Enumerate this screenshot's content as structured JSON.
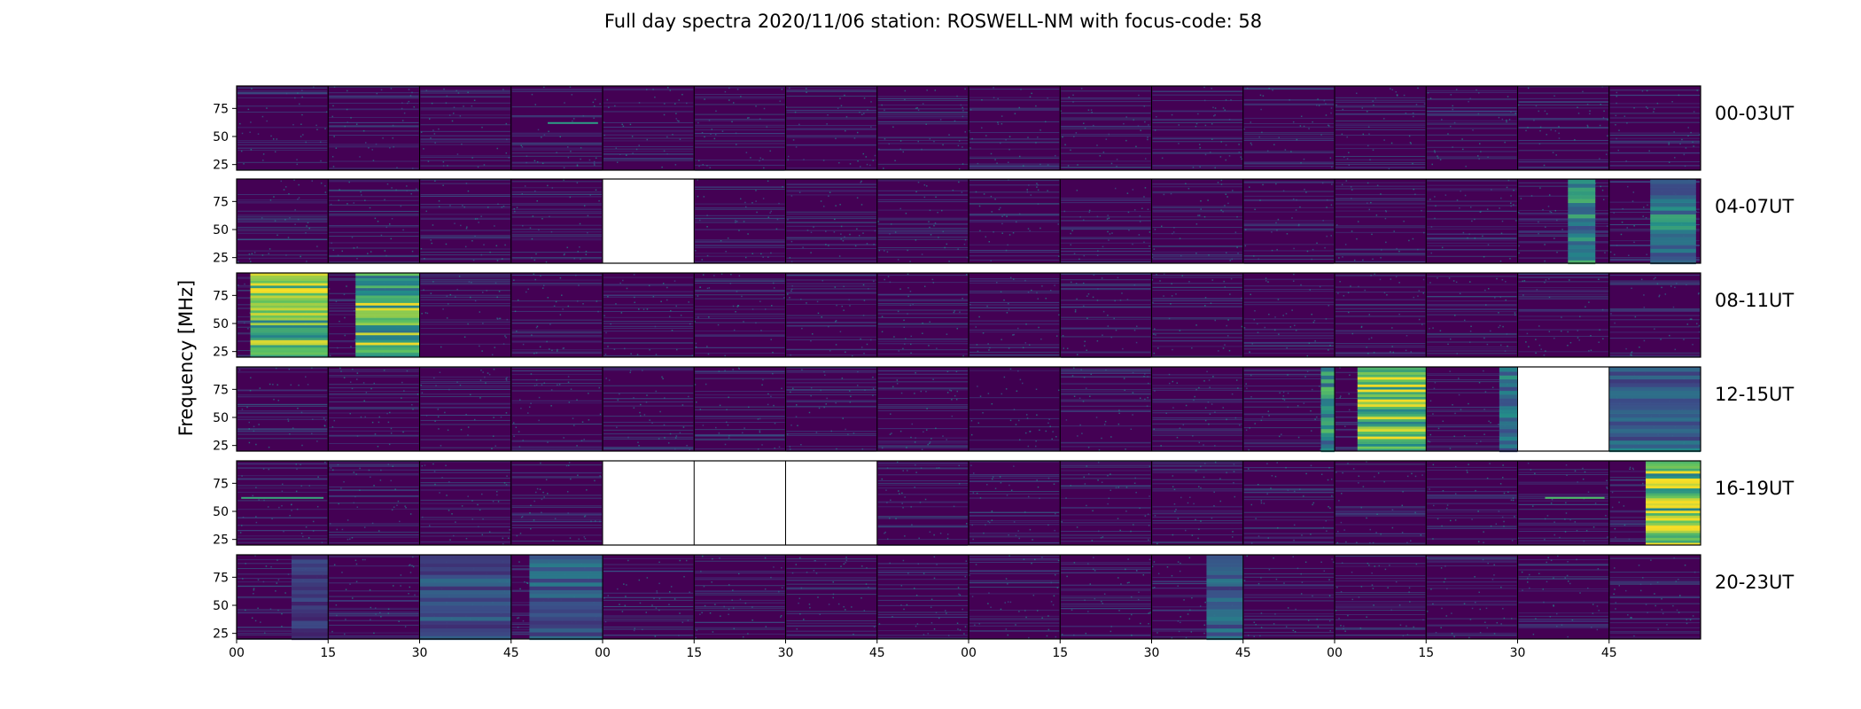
{
  "chart_data": {
    "type": "heatmap",
    "title": "Full day spectra 2020/11/06 station: ROSWELL-NM with focus-code: 58",
    "ylabel": "Frequency [MHz]",
    "xlabel": "",
    "y_ticks": [
      25,
      50,
      75
    ],
    "ylim": [
      20,
      95
    ],
    "x_ticks": [
      "00",
      "15",
      "30",
      "45",
      "00",
      "15",
      "30",
      "45",
      "00",
      "15",
      "30",
      "45",
      "00",
      "15",
      "30",
      "45"
    ],
    "colormap": "viridis",
    "colors": {
      "low": "#440154",
      "mid": "#21918c",
      "high": "#fde725",
      "missing": "#ffffff"
    },
    "rows": [
      {
        "label": "00-03UT",
        "panels": [
          {
            "state": "quiet"
          },
          {
            "state": "quiet"
          },
          {
            "state": "quiet"
          },
          {
            "state": "quiet",
            "lines": [
              {
                "f": 62,
                "i": 0.55,
                "x0": 0.4,
                "x1": 0.95
              }
            ]
          },
          {
            "state": "quiet"
          },
          {
            "state": "quiet"
          },
          {
            "state": "quiet"
          },
          {
            "state": "quiet"
          },
          {
            "state": "quiet"
          },
          {
            "state": "quiet"
          },
          {
            "state": "quiet"
          },
          {
            "state": "quiet"
          },
          {
            "state": "quiet"
          },
          {
            "state": "quiet"
          },
          {
            "state": "quiet"
          },
          {
            "state": "quiet"
          }
        ]
      },
      {
        "label": "04-07UT",
        "panels": [
          {
            "state": "quiet"
          },
          {
            "state": "quiet"
          },
          {
            "state": "quiet"
          },
          {
            "state": "quiet"
          },
          {
            "state": "missing"
          },
          {
            "state": "quiet"
          },
          {
            "state": "quiet"
          },
          {
            "state": "quiet"
          },
          {
            "state": "quiet"
          },
          {
            "state": "quiet"
          },
          {
            "state": "quiet"
          },
          {
            "state": "quiet"
          },
          {
            "state": "quiet"
          },
          {
            "state": "quiet"
          },
          {
            "state": "active",
            "x0": 0.55,
            "x1": 0.85,
            "intensity": 0.55
          },
          {
            "state": "active",
            "x0": 0.45,
            "x1": 0.95,
            "intensity": 0.5
          }
        ]
      },
      {
        "label": "08-11UT",
        "panels": [
          {
            "state": "burst",
            "x0": 0.15,
            "x1": 1.0,
            "intensity": 0.9
          },
          {
            "state": "burst",
            "x0": 0.3,
            "x1": 1.0,
            "intensity": 0.8
          },
          {
            "state": "quiet"
          },
          {
            "state": "quiet"
          },
          {
            "state": "quiet"
          },
          {
            "state": "quiet"
          },
          {
            "state": "quiet"
          },
          {
            "state": "quiet"
          },
          {
            "state": "quiet"
          },
          {
            "state": "quiet"
          },
          {
            "state": "quiet"
          },
          {
            "state": "quiet"
          },
          {
            "state": "quiet"
          },
          {
            "state": "quiet"
          },
          {
            "state": "quiet"
          },
          {
            "state": "quiet"
          }
        ]
      },
      {
        "label": "12-15UT",
        "panels": [
          {
            "state": "quiet"
          },
          {
            "state": "quiet"
          },
          {
            "state": "quiet"
          },
          {
            "state": "quiet"
          },
          {
            "state": "quiet"
          },
          {
            "state": "quiet"
          },
          {
            "state": "quiet"
          },
          {
            "state": "quiet"
          },
          {
            "state": "dark"
          },
          {
            "state": "quiet"
          },
          {
            "state": "quiet"
          },
          {
            "state": "active",
            "x0": 0.85,
            "x1": 1.0,
            "intensity": 0.6
          },
          {
            "state": "burst",
            "x0": 0.25,
            "x1": 1.0,
            "intensity": 0.85
          },
          {
            "state": "active",
            "x0": 0.8,
            "x1": 1.0,
            "intensity": 0.45
          },
          {
            "state": "missing"
          },
          {
            "state": "active",
            "x0": 0.0,
            "x1": 1.0,
            "intensity": 0.4
          }
        ]
      },
      {
        "label": "16-19UT",
        "panels": [
          {
            "state": "quiet",
            "lines": [
              {
                "f": 62,
                "i": 0.6,
                "x0": 0.05,
                "x1": 0.95
              }
            ]
          },
          {
            "state": "quiet"
          },
          {
            "state": "quiet"
          },
          {
            "state": "quiet"
          },
          {
            "state": "missing"
          },
          {
            "state": "missing"
          },
          {
            "state": "missing"
          },
          {
            "state": "quiet"
          },
          {
            "state": "quiet"
          },
          {
            "state": "quiet"
          },
          {
            "state": "quiet"
          },
          {
            "state": "quiet"
          },
          {
            "state": "quiet"
          },
          {
            "state": "quiet"
          },
          {
            "state": "quiet",
            "lines": [
              {
                "f": 62,
                "i": 0.7,
                "x0": 0.3,
                "x1": 0.95
              }
            ]
          },
          {
            "state": "burst",
            "x0": 0.4,
            "x1": 1.0,
            "intensity": 0.95
          }
        ]
      },
      {
        "label": "20-23UT",
        "panels": [
          {
            "state": "active",
            "x0": 0.6,
            "x1": 1.0,
            "intensity": 0.2
          },
          {
            "state": "quiet"
          },
          {
            "state": "active",
            "x0": 0.0,
            "x1": 1.0,
            "intensity": 0.3
          },
          {
            "state": "active",
            "x0": 0.2,
            "x1": 1.0,
            "intensity": 0.35
          },
          {
            "state": "quiet"
          },
          {
            "state": "quiet"
          },
          {
            "state": "quiet"
          },
          {
            "state": "quiet"
          },
          {
            "state": "quiet"
          },
          {
            "state": "quiet"
          },
          {
            "state": "active",
            "x0": 0.6,
            "x1": 1.0,
            "intensity": 0.35
          },
          {
            "state": "quiet"
          },
          {
            "state": "quiet"
          },
          {
            "state": "quiet"
          },
          {
            "state": "quiet"
          },
          {
            "state": "quiet"
          }
        ]
      }
    ]
  }
}
